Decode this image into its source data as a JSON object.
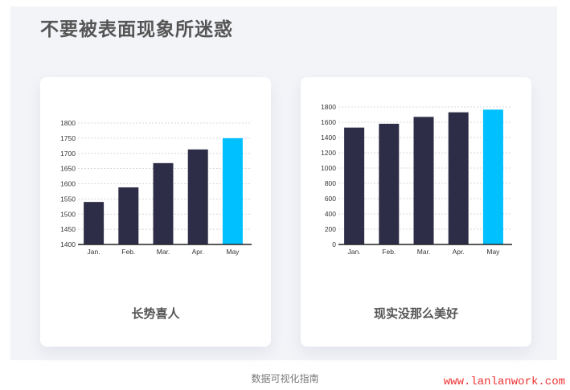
{
  "title": "不要被表面现象所迷惑",
  "footer": "数据可视化指南",
  "watermark": "www.lanlanwork.com",
  "colors": {
    "bar": "#2e2d47",
    "highlight": "#00c0ff",
    "panel": "#f3f4f8"
  },
  "chart_data": [
    {
      "type": "bar",
      "caption": "长势喜人",
      "categories": [
        "Jan.",
        "Feb.",
        "Mar.",
        "Apr.",
        "May"
      ],
      "values": [
        1540,
        1588,
        1668,
        1713,
        1750
      ],
      "highlight_index": 4,
      "ylim": [
        1400,
        1800
      ],
      "yticks": [
        1400,
        1450,
        1500,
        1550,
        1600,
        1650,
        1700,
        1750,
        1800
      ],
      "grid": true
    },
    {
      "type": "bar",
      "caption": "现实没那么美好",
      "categories": [
        "Jan.",
        "Feb.",
        "Mar.",
        "Apr.",
        "May"
      ],
      "values": [
        1530,
        1580,
        1670,
        1730,
        1765
      ],
      "highlight_index": 4,
      "ylim": [
        0,
        1800
      ],
      "yticks": [
        0,
        200,
        400,
        600,
        800,
        1000,
        1200,
        1400,
        1600,
        1800
      ],
      "grid": true
    }
  ]
}
